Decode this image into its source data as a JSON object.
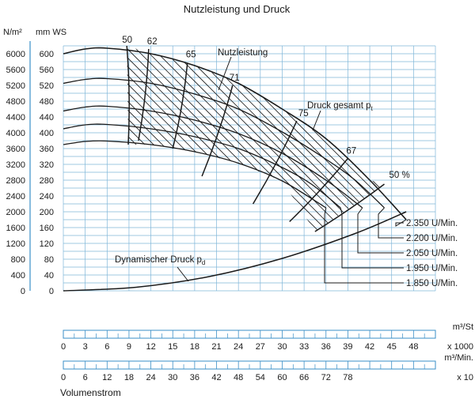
{
  "chart_data": {
    "type": "line",
    "title": "Nutzleistung und Druck",
    "units": {
      "pressure_pa": "N/m²",
      "pressure_mm": "mm WS"
    },
    "y_left_ticks_pa": [
      "6000",
      "5600",
      "5200",
      "4800",
      "4400",
      "4000",
      "3600",
      "3200",
      "2800",
      "2400",
      "2000",
      "1600",
      "1200",
      "800",
      "400",
      "0"
    ],
    "y_right_ticks_mm": [
      "600",
      "560",
      "520",
      "480",
      "440",
      "400",
      "360",
      "320",
      "280",
      "240",
      "200",
      "160",
      "120",
      "80",
      "40",
      "0"
    ],
    "ylim_mm": [
      0,
      620
    ],
    "xlim_m3h": [
      0,
      51000
    ],
    "speed_curves": [
      {
        "label": "2.350 U/Min.",
        "x": [
          0,
          3000,
          6000,
          12000,
          18000,
          24000,
          30000,
          36000,
          42000,
          47000
        ],
        "y": [
          600,
          612,
          614,
          600,
          570,
          525,
          460,
          385,
          280,
          180
        ]
      },
      {
        "label": "2.200 U/Min.",
        "x": [
          0,
          3000,
          6000,
          12000,
          18000,
          24000,
          30000,
          36000,
          40000,
          44000
        ],
        "y": [
          525,
          535,
          537,
          525,
          498,
          460,
          402,
          333,
          280,
          210
        ]
      },
      {
        "label": "2.050 U/Min.",
        "x": [
          0,
          3000,
          6000,
          12000,
          18000,
          24000,
          30000,
          36000,
          41000
        ],
        "y": [
          455,
          465,
          467,
          455,
          432,
          398,
          348,
          280,
          210
        ]
      },
      {
        "label": "1.950 U/Min.",
        "x": [
          0,
          3000,
          6000,
          12000,
          18000,
          24000,
          30000,
          34000,
          38000
        ],
        "y": [
          410,
          420,
          421,
          410,
          390,
          360,
          312,
          270,
          210
        ]
      },
      {
        "label": "1.850 U/Min.",
        "x": [
          0,
          3000,
          6000,
          12000,
          18000,
          24000,
          30000,
          36000
        ],
        "y": [
          370,
          378,
          379,
          370,
          352,
          323,
          278,
          210
        ]
      }
    ],
    "efficiency_lines": [
      {
        "label": "50",
        "x": [
          8700,
          8900
        ],
        "y": [
          620,
          370
        ]
      },
      {
        "label": "62",
        "x": [
          11700,
          10300
        ],
        "y": [
          612,
          380
        ]
      },
      {
        "label": "65",
        "x": [
          17000,
          15000
        ],
        "y": [
          575,
          360
        ]
      },
      {
        "label": "71",
        "x": [
          23200,
          19000
        ],
        "y": [
          520,
          290
        ]
      },
      {
        "label": "75",
        "x": [
          32000,
          26000
        ],
        "y": [
          430,
          220
        ]
      },
      {
        "label": "67",
        "x": [
          39000,
          31000
        ],
        "y": [
          335,
          175
        ]
      },
      {
        "label": "50 %",
        "x": [
          44000,
          34500
        ],
        "y": [
          270,
          150
        ]
      }
    ],
    "dynamic_pressure": {
      "label": "Dynamischer Druck p",
      "label_sub": "d",
      "x": [
        0,
        10000,
        20000,
        30000,
        40000,
        47000
      ],
      "y": [
        0,
        9,
        36,
        82,
        145,
        200
      ]
    },
    "annotations": {
      "nutzleistung": "Nutzleistung",
      "druck_gesamt": "Druck gesamt p",
      "druck_gesamt_sub": "t"
    },
    "x_scale_m3s": {
      "unit": "m³/St",
      "multiplier": "x 1000",
      "ticks": [
        "0",
        "3",
        "6",
        "9",
        "12",
        "15",
        "18",
        "21",
        "24",
        "27",
        "30",
        "33",
        "36",
        "39",
        "42",
        "45",
        "48"
      ]
    },
    "x_scale_m3min": {
      "unit": "m³/Min.",
      "multiplier": "x 10",
      "ticks": [
        "0",
        "6",
        "12",
        "18",
        "24",
        "30",
        "36",
        "42",
        "48",
        "54",
        "60",
        "66",
        "72",
        "78"
      ]
    },
    "x_label": "Volumenstrom",
    "grid": true
  }
}
